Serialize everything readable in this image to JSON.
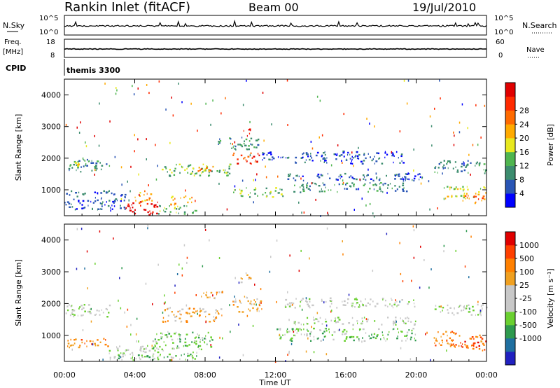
{
  "header": {
    "station": "Rankin Inlet (fitACF)",
    "beam": "Beam 00",
    "date": "19/Jul/2010"
  },
  "strips": {
    "nsky_label": "N.Sky",
    "nsky_ticks": [
      "10^5",
      "10^0"
    ],
    "nsearch_label": "N.Search",
    "nsearch_ticks": [
      "10^5",
      "10^0"
    ],
    "freq_label": "Freq.",
    "freq_unit": "[MHz]",
    "freq_ticks": [
      "18",
      "8"
    ],
    "nave_label": "Nave",
    "nave_ticks": [
      "60",
      "0"
    ],
    "cpid_label": "CPID",
    "cpid_value": "themis 3300"
  },
  "colorbars": {
    "power": {
      "title": "Power [dB]",
      "colors": [
        "#0000ff",
        "#2955b5",
        "#3c8c6e",
        "#4fb54f",
        "#e8e81e",
        "#ffaa00",
        "#ff6a00",
        "#ff2a00",
        "#e00000"
      ],
      "labels": [
        "4",
        "8",
        "12",
        "16",
        "20",
        "24",
        "28"
      ]
    },
    "velocity": {
      "title": "Velocity [m s⁻¹]",
      "colors": [
        "#2020c0",
        "#1f6fa0",
        "#2e9a4e",
        "#6ad030",
        "#c8c8c8",
        "#c8c8c8",
        "#f0a020",
        "#ff8000",
        "#ff4000",
        "#e00000"
      ],
      "labels": [
        "1000",
        "500",
        "100",
        "25",
        "-25",
        "-100",
        "-500",
        "-1000"
      ]
    }
  },
  "chart_data": [
    {
      "type": "heatmap",
      "name": "power-panel",
      "xlabel": "Time UT",
      "ylabel": "Slant Range [km]",
      "x_ticks": [
        "00:00",
        "04:00",
        "08:00",
        "12:00",
        "16:00",
        "20:00",
        "00:00"
      ],
      "y_ticks": [
        "1000",
        "2000",
        "3000",
        "4000"
      ],
      "x_range_hours": [
        0,
        24
      ],
      "y_range_km": [
        180,
        4500
      ],
      "echo_regions": [
        {
          "t0": 0.0,
          "t1": 2.6,
          "r0": 1550,
          "r1": 1950,
          "level": 2
        },
        {
          "t0": 0.5,
          "t1": 1.5,
          "r0": 1700,
          "r1": 1850,
          "level": 4
        },
        {
          "t0": 0.0,
          "t1": 3.5,
          "r0": 350,
          "r1": 950,
          "level": 1
        },
        {
          "t0": 3.3,
          "t1": 5.3,
          "r0": 180,
          "r1": 600,
          "level": 8
        },
        {
          "t0": 4.0,
          "t1": 5.0,
          "r0": 550,
          "r1": 950,
          "level": 5
        },
        {
          "t0": 5.3,
          "t1": 7.5,
          "r0": 200,
          "r1": 500,
          "level": 3
        },
        {
          "t0": 6.0,
          "t1": 7.3,
          "r0": 500,
          "r1": 800,
          "level": 5
        },
        {
          "t0": 5.5,
          "t1": 9.5,
          "r0": 1400,
          "r1": 1800,
          "level": 3
        },
        {
          "t0": 7.5,
          "t1": 8.5,
          "r0": 1550,
          "r1": 1750,
          "level": 6
        },
        {
          "t0": 9.5,
          "t1": 11.2,
          "r0": 1800,
          "r1": 2150,
          "level": 7
        },
        {
          "t0": 10.0,
          "t1": 10.6,
          "r0": 2650,
          "r1": 2900,
          "level": 8
        },
        {
          "t0": 8.5,
          "t1": 11.0,
          "r0": 2250,
          "r1": 2650,
          "level": 2
        },
        {
          "t0": 11.0,
          "t1": 12.8,
          "r0": 1900,
          "r1": 2200,
          "level": 1
        },
        {
          "t0": 9.5,
          "t1": 12.5,
          "r0": 750,
          "r1": 1050,
          "level": 3
        },
        {
          "t0": 13.0,
          "t1": 19.3,
          "r0": 1800,
          "r1": 2200,
          "level": 1
        },
        {
          "t0": 13.0,
          "t1": 19.5,
          "r0": 900,
          "r1": 1200,
          "level": 2
        },
        {
          "t0": 12.5,
          "t1": 20.5,
          "r0": 1250,
          "r1": 1500,
          "level": 1
        },
        {
          "t0": 21.0,
          "t1": 24.0,
          "r0": 1500,
          "r1": 1900,
          "level": 2
        },
        {
          "t0": 21.5,
          "t1": 24.0,
          "r0": 700,
          "r1": 1100,
          "level": 4
        },
        {
          "t0": 22.5,
          "t1": 24.0,
          "r0": 550,
          "r1": 800,
          "level": 6
        }
      ]
    },
    {
      "type": "heatmap",
      "name": "velocity-panel",
      "xlabel": "Time UT",
      "ylabel": "Slant Range [km]",
      "x_ticks": [
        "00:00",
        "04:00",
        "08:00",
        "12:00",
        "16:00",
        "20:00",
        "00:00"
      ],
      "y_ticks": [
        "1000",
        "2000",
        "3000",
        "4000"
      ],
      "x_range_hours": [
        0,
        24
      ],
      "y_range_km": [
        180,
        4500
      ],
      "echo_regions": [
        {
          "t0": 0.0,
          "t1": 2.6,
          "r0": 1550,
          "r1": 1950,
          "level": 4
        },
        {
          "t0": 0.0,
          "t1": 2.5,
          "r0": 600,
          "r1": 900,
          "level": 7
        },
        {
          "t0": 2.5,
          "t1": 5.5,
          "r0": 200,
          "r1": 650,
          "level": 4
        },
        {
          "t0": 3.0,
          "t1": 7.5,
          "r0": 200,
          "r1": 450,
          "level": 3
        },
        {
          "t0": 5.0,
          "t1": 8.5,
          "r0": 500,
          "r1": 1100,
          "level": 3
        },
        {
          "t0": 5.5,
          "t1": 9.0,
          "r0": 1400,
          "r1": 1850,
          "level": 6
        },
        {
          "t0": 7.5,
          "t1": 9.0,
          "r0": 2150,
          "r1": 2400,
          "level": 6
        },
        {
          "t0": 9.5,
          "t1": 11.3,
          "r0": 1700,
          "r1": 2200,
          "level": 6
        },
        {
          "t0": 10.0,
          "t1": 10.6,
          "r0": 2600,
          "r1": 2950,
          "level": 6
        },
        {
          "t0": 12.5,
          "t1": 20.0,
          "r0": 1850,
          "r1": 2150,
          "level": 4
        },
        {
          "t0": 13.0,
          "t1": 20.0,
          "r0": 1300,
          "r1": 1550,
          "level": 4
        },
        {
          "t0": 12.0,
          "t1": 20.0,
          "r0": 800,
          "r1": 1200,
          "level": 3
        },
        {
          "t0": 21.0,
          "t1": 24.0,
          "r0": 1600,
          "r1": 1950,
          "level": 4
        },
        {
          "t0": 21.0,
          "t1": 24.0,
          "r0": 600,
          "r1": 1100,
          "level": 7
        },
        {
          "t0": 22.5,
          "t1": 24.0,
          "r0": 500,
          "r1": 800,
          "level": 8
        }
      ]
    }
  ]
}
